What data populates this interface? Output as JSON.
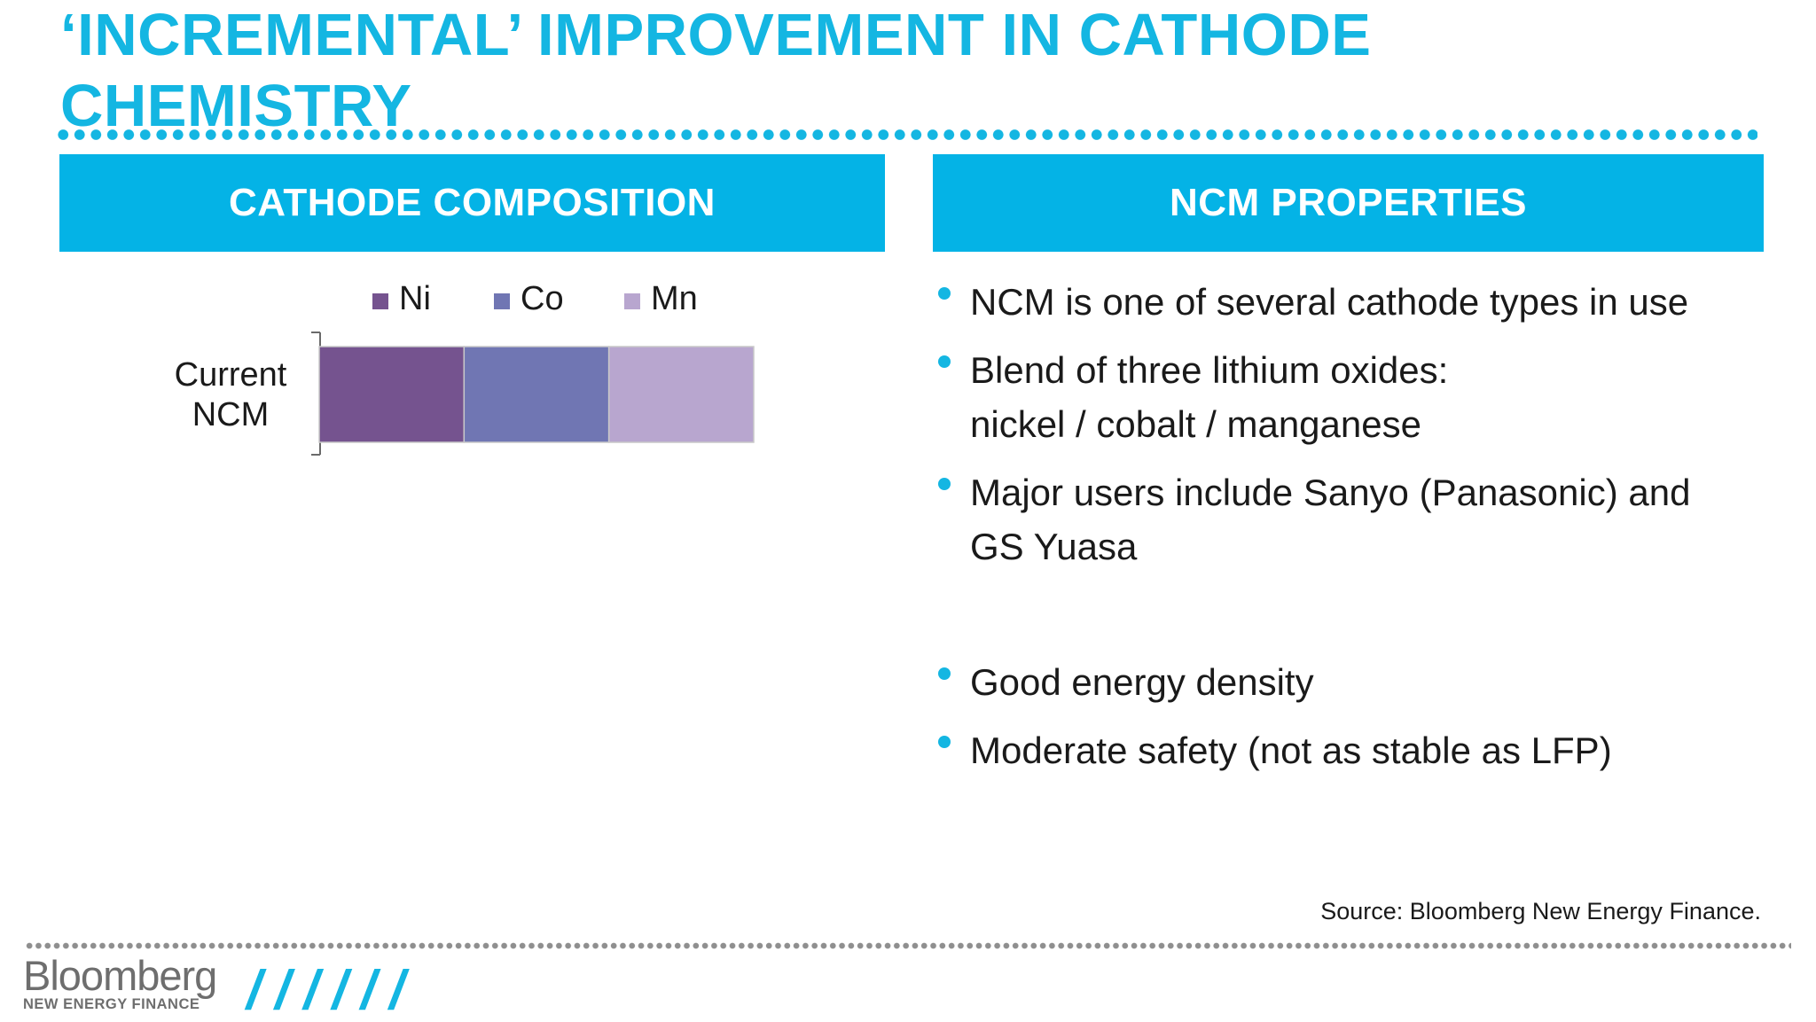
{
  "slide": {
    "title_line1": "‘INCREMENTAL’ IMPROVEMENT IN CATHODE",
    "title_line2": "CHEMISTRY"
  },
  "panels": {
    "left_header": "CATHODE COMPOSITION",
    "right_header": "NCM PROPERTIES"
  },
  "chart_data": {
    "type": "bar",
    "orientation": "horizontal",
    "stacked": true,
    "categories": [
      "Current NCM"
    ],
    "category_label_lines": [
      "Current",
      "NCM"
    ],
    "series": [
      {
        "name": "Ni",
        "values": [
          1
        ],
        "color": "#75538f"
      },
      {
        "name": "Co",
        "values": [
          1
        ],
        "color": "#7076b3"
      },
      {
        "name": "Mn",
        "values": [
          1
        ],
        "color": "#b8a6cf"
      }
    ],
    "xlim": [
      0,
      3
    ],
    "legend_position": "top",
    "grid": false
  },
  "bullets": [
    {
      "lines": [
        "NCM is one of several cathode types in use"
      ]
    },
    {
      "lines": [
        "Blend of three lithium oxides:",
        "nickel / cobalt / manganese"
      ]
    },
    {
      "lines": [
        "Major users include Sanyo (Panasonic) and",
        "GS Yuasa"
      ]
    },
    {
      "lines": [
        "Good energy density"
      ]
    },
    {
      "lines": [
        "Moderate safety (not as stable as LFP)"
      ]
    }
  ],
  "footer": {
    "source": "Source: Bloomberg New Energy Finance.",
    "logo_main": "Bloomberg",
    "logo_sub": "NEW ENERGY FINANCE",
    "slashes": "//////"
  },
  "colors": {
    "accent": "#14b6e2",
    "header_bg": "#04b3e6"
  }
}
